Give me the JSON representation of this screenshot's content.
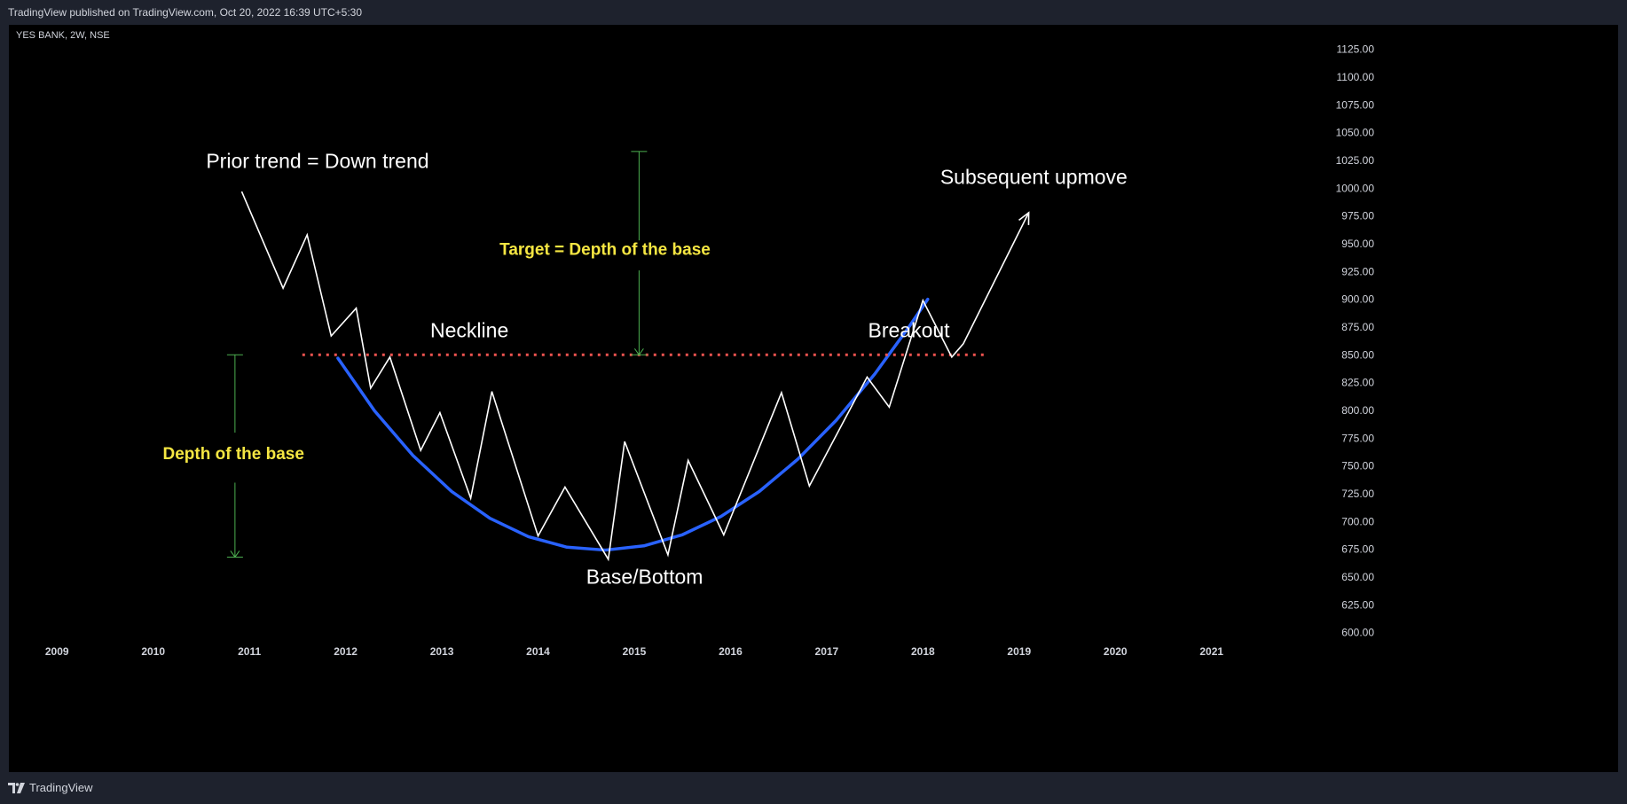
{
  "header": {
    "published": "TradingView published on TradingView.com, Oct 20, 2022 16:39 UTC+5:30"
  },
  "symbol_line": "YES BANK, 2W, NSE",
  "footer": {
    "brand": "TradingView",
    "logo_icon": "tradingview-logo-icon"
  },
  "colors": {
    "price_line": "#ffffff",
    "base_curve": "#2962ff",
    "neckline": "#ef5350",
    "measure": "#4caf50",
    "label_white": "#ffffff",
    "label_yellow": "#f5e642",
    "axis_text": "#d1d4dc"
  },
  "chart_data": {
    "type": "line",
    "title": "",
    "xlabel": "",
    "ylabel": "",
    "ylim": [
      587,
      1147
    ],
    "xlim": [
      2008.5,
      2022.1
    ],
    "y_ticks": [
      "1125.00",
      "1100.00",
      "1075.00",
      "1050.00",
      "1025.00",
      "1000.00",
      "975.00",
      "950.00",
      "925.00",
      "900.00",
      "875.00",
      "850.00",
      "825.00",
      "800.00",
      "775.00",
      "750.00",
      "725.00",
      "700.00",
      "675.00",
      "650.00",
      "625.00",
      "600.00"
    ],
    "x_ticks": [
      "2009",
      "2010",
      "2011",
      "2012",
      "2013",
      "2014",
      "2015",
      "2016",
      "2017",
      "2018",
      "2019",
      "2020",
      "2021"
    ],
    "grid": false,
    "series": [
      {
        "role": "price",
        "x": [
          2010.92,
          2011.35,
          2011.6,
          2011.85,
          2012.11,
          2012.26,
          2012.46,
          2012.78,
          2012.98,
          2013.3,
          2013.52,
          2014.0,
          2014.28,
          2014.73,
          2014.9,
          2015.35,
          2015.56,
          2015.93,
          2016.53,
          2016.82,
          2017.42,
          2017.65,
          2018.0,
          2018.3,
          2018.42,
          2019.1
        ],
        "y": [
          997,
          910,
          958,
          867,
          892,
          820,
          848,
          764,
          798,
          721,
          817,
          687,
          731,
          666,
          772,
          670,
          755,
          688,
          816,
          732,
          830,
          803,
          899,
          848,
          860,
          978
        ]
      },
      {
        "role": "base",
        "x": [
          2011.92,
          2012.3,
          2012.7,
          2013.1,
          2013.5,
          2013.9,
          2014.3,
          2014.7,
          2015.1,
          2015.5,
          2015.9,
          2016.3,
          2016.7,
          2017.1,
          2017.5,
          2017.85,
          2018.05
        ],
        "y": [
          847,
          799.7,
          759.4,
          727.2,
          702.9,
          686.4,
          676.9,
          674.3,
          678.1,
          688.1,
          704.5,
          727.1,
          756.1,
          791.2,
          832.8,
          874.5,
          900
        ]
      },
      {
        "role": "neckline",
        "x": [
          2011.55,
          2018.65
        ],
        "y": [
          850,
          850
        ]
      }
    ],
    "annotations": [
      {
        "text": "Prior trend = Down trend",
        "x": 2010.55,
        "y": 1018,
        "color": "white",
        "size": "large"
      },
      {
        "text": "Subsequent upmove",
        "x": 2018.18,
        "y": 1004,
        "color": "white",
        "size": "large"
      },
      {
        "text": "Neckline",
        "x": 2012.88,
        "y": 866,
        "color": "white",
        "size": "large"
      },
      {
        "text": "Breakout",
        "x": 2017.43,
        "y": 866,
        "color": "white",
        "size": "large"
      },
      {
        "text": "Base/Bottom",
        "x": 2014.5,
        "y": 644,
        "color": "white",
        "size": "large"
      },
      {
        "text": "Target = Depth of the base",
        "x": 2013.6,
        "y": 940,
        "color": "yellow",
        "size": "medium"
      },
      {
        "text": "Depth of the base",
        "x": 2010.1,
        "y": 756,
        "color": "yellow",
        "size": "medium"
      }
    ],
    "measures": [
      {
        "label": "Depth of the base",
        "x": 2010.85,
        "y_top": 850,
        "y_bottom": 668,
        "gap_from": 780,
        "gap_to": 735
      },
      {
        "label": "Target = Depth of the base",
        "x": 2015.05,
        "y_top": 1033,
        "y_bottom": 850,
        "gap_from": 953,
        "gap_to": 926
      }
    ],
    "arrows": [
      {
        "name": "upmove-arrow",
        "x": 2019.1,
        "y": 978
      }
    ]
  }
}
